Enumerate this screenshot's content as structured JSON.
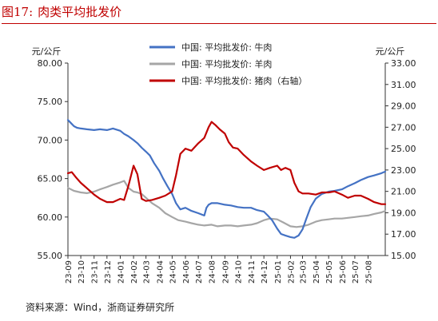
{
  "figure": {
    "number": "图17:",
    "title": "肉类平均批发价",
    "source": "资料来源：Wind，浙商证券研究所"
  },
  "chart_data": {
    "type": "line",
    "ylabel_left": "元/公斤",
    "ylabel_right": "元/公斤",
    "ylim_left": [
      55,
      80
    ],
    "ylim_right": [
      15,
      33
    ],
    "yticks_left": [
      "55.00",
      "60.00",
      "65.00",
      "70.00",
      "75.00",
      "80.00"
    ],
    "yticks_right": [
      "15.00",
      "17.00",
      "19.00",
      "21.00",
      "23.00",
      "25.00",
      "27.00",
      "29.00",
      "31.00",
      "33.00"
    ],
    "xticks": [
      "23-09",
      "23-10",
      "23-11",
      "23-12",
      "24-01",
      "24-02",
      "24-03",
      "24-04",
      "24-05",
      "24-06",
      "24-07",
      "24-08",
      "24-09",
      "24-10",
      "24-11",
      "24-12",
      "25-01",
      "25-02",
      "25-03",
      "25-04",
      "25-05",
      "25-06",
      "25-07",
      "25-08"
    ],
    "x_range": [
      "2023-09-01",
      "2025-09-10"
    ],
    "grid": false,
    "legend": "top-center",
    "series": [
      {
        "name": "中国: 平均批发价: 牛肉",
        "axis": "left",
        "color": "#4472c4",
        "points": [
          [
            "2023-09-01",
            72.6
          ],
          [
            "2023-09-08",
            72.2
          ],
          [
            "2023-09-15",
            71.8
          ],
          [
            "2023-09-22",
            71.6
          ],
          [
            "2023-10-01",
            71.5
          ],
          [
            "2023-10-15",
            71.4
          ],
          [
            "2023-11-01",
            71.3
          ],
          [
            "2023-11-15",
            71.4
          ],
          [
            "2023-12-01",
            71.3
          ],
          [
            "2023-12-15",
            71.5
          ],
          [
            "2024-01-01",
            71.2
          ],
          [
            "2024-01-10",
            70.8
          ],
          [
            "2024-01-20",
            70.5
          ],
          [
            "2024-02-01",
            70.0
          ],
          [
            "2024-02-10",
            69.6
          ],
          [
            "2024-02-20",
            69.0
          ],
          [
            "2024-03-01",
            68.5
          ],
          [
            "2024-03-10",
            68.0
          ],
          [
            "2024-03-20",
            67.0
          ],
          [
            "2024-04-01",
            66.0
          ],
          [
            "2024-04-10",
            65.0
          ],
          [
            "2024-04-20",
            64.0
          ],
          [
            "2024-05-01",
            63.0
          ],
          [
            "2024-05-10",
            61.8
          ],
          [
            "2024-05-20",
            61.0
          ],
          [
            "2024-06-01",
            61.2
          ],
          [
            "2024-06-15",
            60.8
          ],
          [
            "2024-07-01",
            60.5
          ],
          [
            "2024-07-15",
            60.2
          ],
          [
            "2024-07-20",
            61.2
          ],
          [
            "2024-07-25",
            61.6
          ],
          [
            "2024-08-01",
            61.8
          ],
          [
            "2024-08-15",
            61.8
          ],
          [
            "2024-09-01",
            61.6
          ],
          [
            "2024-09-15",
            61.5
          ],
          [
            "2024-10-01",
            61.3
          ],
          [
            "2024-10-15",
            61.2
          ],
          [
            "2024-11-01",
            61.2
          ],
          [
            "2024-11-15",
            60.9
          ],
          [
            "2024-12-01",
            60.7
          ],
          [
            "2024-12-10",
            60.2
          ],
          [
            "2024-12-20",
            59.6
          ],
          [
            "2025-01-01",
            58.5
          ],
          [
            "2025-01-10",
            57.8
          ],
          [
            "2025-01-20",
            57.6
          ],
          [
            "2025-02-01",
            57.4
          ],
          [
            "2025-02-10",
            57.3
          ],
          [
            "2025-02-20",
            57.6
          ],
          [
            "2025-03-01",
            58.4
          ],
          [
            "2025-03-10",
            59.8
          ],
          [
            "2025-03-20",
            61.3
          ],
          [
            "2025-04-01",
            62.4
          ],
          [
            "2025-04-15",
            63.0
          ],
          [
            "2025-05-01",
            63.3
          ],
          [
            "2025-05-15",
            63.4
          ],
          [
            "2025-06-01",
            63.6
          ],
          [
            "2025-06-15",
            64.0
          ],
          [
            "2025-07-01",
            64.4
          ],
          [
            "2025-07-15",
            64.8
          ],
          [
            "2025-08-01",
            65.2
          ],
          [
            "2025-08-15",
            65.4
          ],
          [
            "2025-09-01",
            65.7
          ],
          [
            "2025-09-10",
            65.9
          ]
        ]
      },
      {
        "name": "中国: 平均批发价: 羊肉",
        "axis": "left",
        "color": "#a6a6a6",
        "points": [
          [
            "2023-09-01",
            63.8
          ],
          [
            "2023-09-15",
            63.4
          ],
          [
            "2023-10-01",
            63.2
          ],
          [
            "2023-10-15",
            63.1
          ],
          [
            "2023-11-01",
            63.3
          ],
          [
            "2023-11-15",
            63.6
          ],
          [
            "2023-12-01",
            63.9
          ],
          [
            "2023-12-15",
            64.2
          ],
          [
            "2024-01-01",
            64.5
          ],
          [
            "2024-01-10",
            64.7
          ],
          [
            "2024-01-20",
            63.8
          ],
          [
            "2024-02-01",
            63.3
          ],
          [
            "2024-02-10",
            63.2
          ],
          [
            "2024-02-20",
            63.0
          ],
          [
            "2024-03-01",
            62.5
          ],
          [
            "2024-03-15",
            61.8
          ],
          [
            "2024-04-01",
            61.2
          ],
          [
            "2024-04-15",
            60.5
          ],
          [
            "2024-05-01",
            60.0
          ],
          [
            "2024-05-15",
            59.6
          ],
          [
            "2024-06-01",
            59.4
          ],
          [
            "2024-06-15",
            59.2
          ],
          [
            "2024-07-01",
            59.0
          ],
          [
            "2024-07-15",
            58.9
          ],
          [
            "2024-08-01",
            59.0
          ],
          [
            "2024-08-15",
            58.8
          ],
          [
            "2024-09-01",
            58.9
          ],
          [
            "2024-09-15",
            58.9
          ],
          [
            "2024-10-01",
            58.8
          ],
          [
            "2024-10-15",
            58.9
          ],
          [
            "2024-11-01",
            59.0
          ],
          [
            "2024-11-15",
            59.2
          ],
          [
            "2024-12-01",
            59.6
          ],
          [
            "2024-12-15",
            59.8
          ],
          [
            "2025-01-01",
            59.7
          ],
          [
            "2025-01-15",
            59.3
          ],
          [
            "2025-02-01",
            58.8
          ],
          [
            "2025-02-15",
            58.7
          ],
          [
            "2025-03-01",
            58.8
          ],
          [
            "2025-03-15",
            59.0
          ],
          [
            "2025-04-01",
            59.4
          ],
          [
            "2025-04-15",
            59.6
          ],
          [
            "2025-05-01",
            59.7
          ],
          [
            "2025-05-15",
            59.8
          ],
          [
            "2025-06-01",
            59.8
          ],
          [
            "2025-06-15",
            59.9
          ],
          [
            "2025-07-01",
            60.0
          ],
          [
            "2025-07-15",
            60.1
          ],
          [
            "2025-08-01",
            60.2
          ],
          [
            "2025-08-15",
            60.4
          ],
          [
            "2025-09-01",
            60.6
          ],
          [
            "2025-09-10",
            60.8
          ]
        ]
      },
      {
        "name": "中国: 平均批发价: 猪肉（右轴）",
        "axis": "right",
        "color": "#c00000",
        "points": [
          [
            "2023-09-01",
            22.7
          ],
          [
            "2023-09-10",
            22.8
          ],
          [
            "2023-09-20",
            22.3
          ],
          [
            "2023-10-01",
            21.8
          ],
          [
            "2023-10-15",
            21.3
          ],
          [
            "2023-11-01",
            20.7
          ],
          [
            "2023-11-15",
            20.3
          ],
          [
            "2023-12-01",
            20.0
          ],
          [
            "2023-12-15",
            20.0
          ],
          [
            "2024-01-01",
            20.3
          ],
          [
            "2024-01-10",
            20.2
          ],
          [
            "2024-01-20",
            21.5
          ],
          [
            "2024-02-01",
            23.4
          ],
          [
            "2024-02-10",
            22.6
          ],
          [
            "2024-02-20",
            20.3
          ],
          [
            "2024-03-01",
            20.1
          ],
          [
            "2024-03-15",
            20.2
          ],
          [
            "2024-04-01",
            20.4
          ],
          [
            "2024-04-15",
            20.6
          ],
          [
            "2024-05-01",
            21.0
          ],
          [
            "2024-05-10",
            22.5
          ],
          [
            "2024-05-20",
            24.5
          ],
          [
            "2024-06-01",
            25.0
          ],
          [
            "2024-06-15",
            24.8
          ],
          [
            "2024-07-01",
            25.5
          ],
          [
            "2024-07-15",
            26.0
          ],
          [
            "2024-07-25",
            27.0
          ],
          [
            "2024-08-01",
            27.5
          ],
          [
            "2024-08-10",
            27.2
          ],
          [
            "2024-08-20",
            26.8
          ],
          [
            "2024-09-01",
            26.4
          ],
          [
            "2024-09-10",
            25.6
          ],
          [
            "2024-09-20",
            25.1
          ],
          [
            "2024-10-01",
            25.0
          ],
          [
            "2024-10-15",
            24.4
          ],
          [
            "2024-11-01",
            23.8
          ],
          [
            "2024-11-15",
            23.4
          ],
          [
            "2024-12-01",
            23.0
          ],
          [
            "2024-12-15",
            23.2
          ],
          [
            "2025-01-01",
            23.4
          ],
          [
            "2025-01-10",
            23.0
          ],
          [
            "2025-01-20",
            23.2
          ],
          [
            "2025-02-01",
            23.0
          ],
          [
            "2025-02-10",
            21.8
          ],
          [
            "2025-02-20",
            21.0
          ],
          [
            "2025-03-01",
            20.8
          ],
          [
            "2025-03-15",
            20.8
          ],
          [
            "2025-04-01",
            20.7
          ],
          [
            "2025-04-15",
            20.9
          ],
          [
            "2025-05-01",
            20.9
          ],
          [
            "2025-05-15",
            21.0
          ],
          [
            "2025-06-01",
            20.7
          ],
          [
            "2025-06-15",
            20.4
          ],
          [
            "2025-07-01",
            20.6
          ],
          [
            "2025-07-15",
            20.6
          ],
          [
            "2025-08-01",
            20.3
          ],
          [
            "2025-08-15",
            20.0
          ],
          [
            "2025-09-01",
            19.8
          ],
          [
            "2025-09-10",
            19.8
          ]
        ]
      }
    ]
  }
}
